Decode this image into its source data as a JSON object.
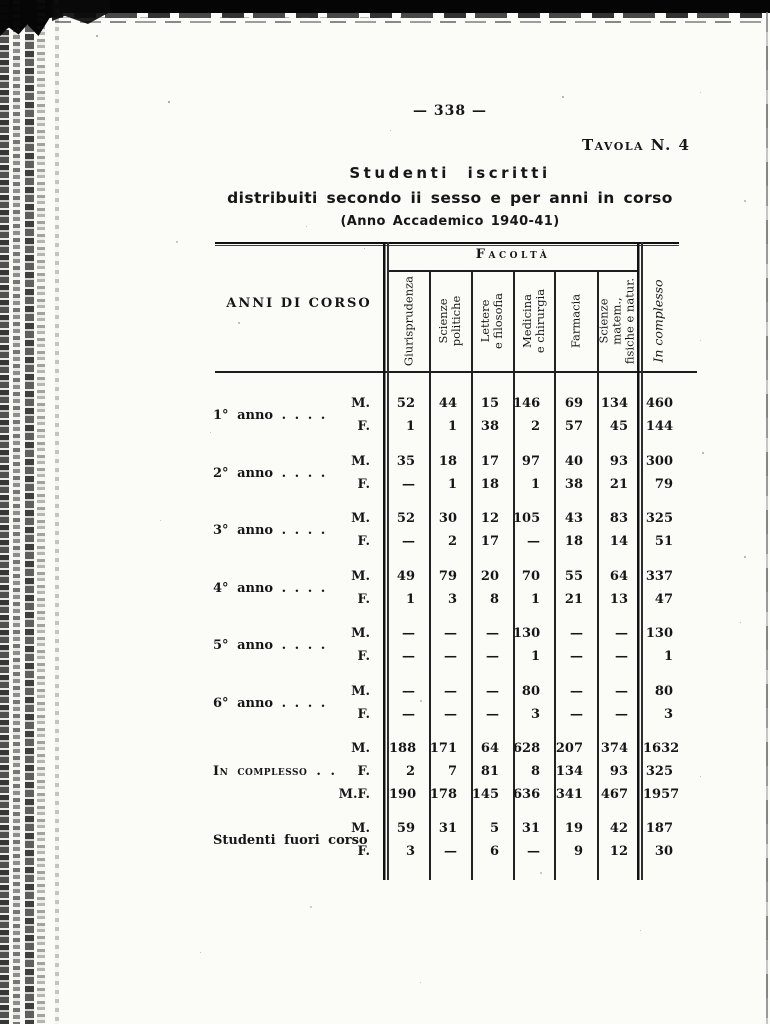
{
  "page": {
    "page_number": "— 338 —",
    "table_number_label": "Tavola N. 4",
    "title": "Studenti iscritti",
    "subtitle": "distribuiti secondo ii sesso e per anni in corso",
    "academic_year": "(Anno Accademico 1940-41)"
  },
  "table": {
    "row_header": "ANNI DI CORSO",
    "col_group_header": "Facoltà",
    "columns": [
      "Giurisprudenza",
      "Scienze politiche",
      "Lettere\ne filosofia",
      "Medicina\ne chirurgia",
      "Farmacia",
      "Scienze matem.,\nfisiche e natur.",
      "In complesso"
    ],
    "groups": [
      {
        "label": "1° anno . . . .",
        "smallcaps": false,
        "rows": [
          {
            "sex": "M.",
            "values": [
              "52",
              "44",
              "15",
              "146",
              "69",
              "134",
              "460"
            ]
          },
          {
            "sex": "F.",
            "values": [
              "1",
              "1",
              "38",
              "2",
              "57",
              "45",
              "144"
            ]
          }
        ]
      },
      {
        "label": "2° anno . . . .",
        "smallcaps": false,
        "rows": [
          {
            "sex": "M.",
            "values": [
              "35",
              "18",
              "17",
              "97",
              "40",
              "93",
              "300"
            ]
          },
          {
            "sex": "F.",
            "values": [
              "—",
              "1",
              "18",
              "1",
              "38",
              "21",
              "79"
            ]
          }
        ]
      },
      {
        "label": "3° anno . . . .",
        "smallcaps": false,
        "rows": [
          {
            "sex": "M.",
            "values": [
              "52",
              "30",
              "12",
              "105",
              "43",
              "83",
              "325"
            ]
          },
          {
            "sex": "F.",
            "values": [
              "—",
              "2",
              "17",
              "—",
              "18",
              "14",
              "51"
            ]
          }
        ]
      },
      {
        "label": "4° anno . . . .",
        "smallcaps": false,
        "rows": [
          {
            "sex": "M.",
            "values": [
              "49",
              "79",
              "20",
              "70",
              "55",
              "64",
              "337"
            ]
          },
          {
            "sex": "F.",
            "values": [
              "1",
              "3",
              "8",
              "1",
              "21",
              "13",
              "47"
            ]
          }
        ]
      },
      {
        "label": "5° anno . . . .",
        "smallcaps": false,
        "rows": [
          {
            "sex": "M.",
            "values": [
              "—",
              "—",
              "—",
              "130",
              "—",
              "—",
              "130"
            ]
          },
          {
            "sex": "F.",
            "values": [
              "—",
              "—",
              "—",
              "1",
              "—",
              "—",
              "1"
            ]
          }
        ]
      },
      {
        "label": "6° anno . . . .",
        "smallcaps": false,
        "rows": [
          {
            "sex": "M.",
            "values": [
              "—",
              "—",
              "—",
              "80",
              "—",
              "—",
              "80"
            ]
          },
          {
            "sex": "F.",
            "values": [
              "—",
              "—",
              "—",
              "3",
              "—",
              "—",
              "3"
            ]
          }
        ]
      },
      {
        "label": "In complesso . .",
        "smallcaps": true,
        "rows": [
          {
            "sex": "M.",
            "values": [
              "188",
              "171",
              "64",
              "628",
              "207",
              "374",
              "1632"
            ]
          },
          {
            "sex": "F.",
            "values": [
              "2",
              "7",
              "81",
              "8",
              "134",
              "93",
              "325"
            ]
          },
          {
            "sex": "M.F.",
            "values": [
              "190",
              "178",
              "145",
              "636",
              "341",
              "467",
              "1957"
            ]
          }
        ]
      },
      {
        "label": "Studenti fuori corso",
        "smallcaps": false,
        "rows": [
          {
            "sex": "M.",
            "values": [
              "59",
              "31",
              "5",
              "31",
              "19",
              "42",
              "187"
            ]
          },
          {
            "sex": "F.",
            "values": [
              "3",
              "—",
              "6",
              "—",
              "9",
              "12",
              "30"
            ]
          }
        ]
      }
    ]
  }
}
